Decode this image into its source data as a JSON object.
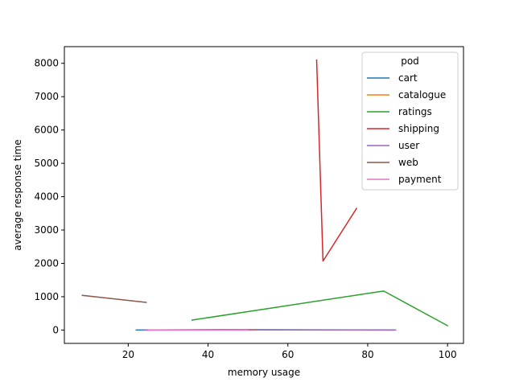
{
  "chart_data": {
    "type": "line",
    "title": "",
    "xlabel": "memory usage",
    "ylabel": "average response time",
    "xlim": [
      4,
      104
    ],
    "ylim": [
      -400,
      8500
    ],
    "xticks": [
      20,
      40,
      60,
      80,
      100
    ],
    "yticks": [
      0,
      1000,
      2000,
      3000,
      4000,
      5000,
      6000,
      7000,
      8000
    ],
    "grid": false,
    "legend": {
      "title": "pod",
      "placement": "top-right",
      "entries": [
        "cart",
        "catalogue",
        "ratings",
        "shipping",
        "user",
        "web",
        "payment"
      ]
    },
    "series": [
      {
        "name": "cart",
        "color": "#1f77b4",
        "x": [
          22,
          47,
          86.5
        ],
        "y": [
          0,
          8,
          0
        ]
      },
      {
        "name": "catalogue",
        "color": "#ff7f0e",
        "x": [
          24,
          52
        ],
        "y": [
          0,
          0
        ]
      },
      {
        "name": "ratings",
        "color": "#2ca02c",
        "x": [
          36,
          84,
          100
        ],
        "y": [
          300,
          1170,
          130
        ]
      },
      {
        "name": "shipping",
        "color": "#d62728",
        "x": [
          67.2,
          68.8,
          77.2
        ],
        "y": [
          8100,
          2070,
          3650
        ]
      },
      {
        "name": "user",
        "color": "#9467bd",
        "x": [
          24,
          43,
          87
        ],
        "y": [
          0,
          15,
          0
        ]
      },
      {
        "name": "web",
        "color": "#8c564b",
        "x": [
          8.5,
          24.5
        ],
        "y": [
          1040,
          830
        ]
      },
      {
        "name": "payment",
        "color": "#e377c2",
        "x": [
          25,
          50
        ],
        "y": [
          0,
          0
        ]
      }
    ]
  }
}
